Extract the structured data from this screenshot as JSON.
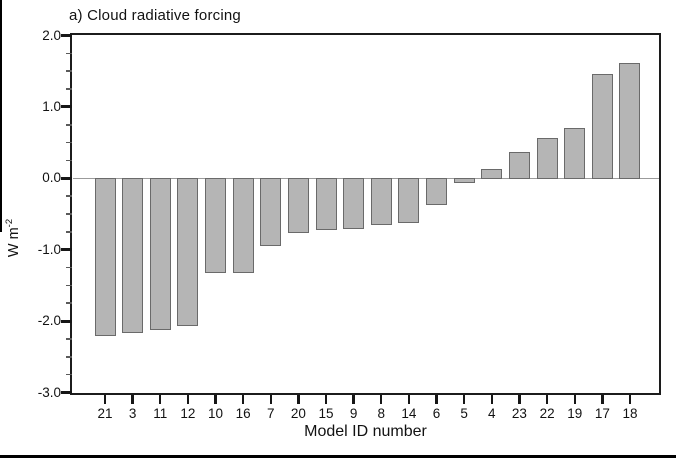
{
  "chart_data": {
    "type": "bar",
    "title": "a) Cloud radiative forcing",
    "xlabel": "Model ID number",
    "ylabel": "W m^-2",
    "ylabel_base": "W m",
    "ylabel_exp": "-2",
    "categories": [
      "21",
      "3",
      "11",
      "12",
      "10",
      "16",
      "7",
      "20",
      "15",
      "9",
      "8",
      "14",
      "6",
      "5",
      "4",
      "23",
      "22",
      "19",
      "17",
      "18"
    ],
    "values": [
      -2.21,
      -2.16,
      -2.13,
      -2.07,
      -1.32,
      -1.33,
      -0.95,
      -0.77,
      -0.72,
      -0.71,
      -0.65,
      -0.63,
      -0.37,
      -0.07,
      0.13,
      0.37,
      0.57,
      0.71,
      1.46,
      1.61
    ],
    "ylim": [
      -3.0,
      2.0
    ],
    "yticks": [
      2.0,
      1.0,
      0.0,
      -1.0,
      -2.0,
      -3.0
    ],
    "ytick_labels": [
      "2.0",
      "1.0",
      "0.0",
      "-1.0",
      "-2.0",
      "-3.0"
    ],
    "minor_tick_interval": 0.25,
    "grid": false,
    "legend": null,
    "bar_color": "#b5b5b5",
    "bar_border_color": "#6a6a6a",
    "zero_line_color": "#9b9b9b",
    "frame_color": "#1c1c1c"
  }
}
